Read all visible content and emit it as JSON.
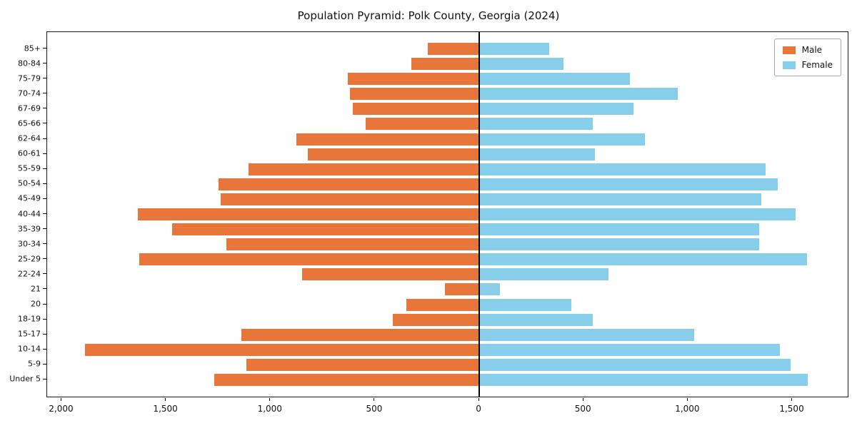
{
  "chart_data": {
    "type": "bar",
    "subtype": "population-pyramid",
    "title": "Population Pyramid: Polk County, Georgia (2024)",
    "categories": [
      "85+",
      "80-84",
      "75-79",
      "70-74",
      "67-69",
      "65-66",
      "62-64",
      "60-61",
      "55-59",
      "50-54",
      "45-49",
      "40-44",
      "35-39",
      "30-34",
      "25-29",
      "22-24",
      "21",
      "20",
      "18-19",
      "15-17",
      "10-14",
      "5-9",
      "Under 5"
    ],
    "series": [
      {
        "name": "Male",
        "side": "left",
        "color": "#e8763b",
        "values": [
          245,
          325,
          630,
          620,
          605,
          545,
          875,
          820,
          1105,
          1250,
          1240,
          1635,
          1470,
          1210,
          1630,
          850,
          165,
          350,
          415,
          1140,
          1890,
          1115,
          1270
        ]
      },
      {
        "name": "Female",
        "side": "right",
        "color": "#87ceeb",
        "values": [
          335,
          405,
          720,
          950,
          740,
          545,
          795,
          555,
          1370,
          1430,
          1350,
          1515,
          1340,
          1340,
          1570,
          620,
          100,
          440,
          545,
          1030,
          1440,
          1490,
          1575
        ]
      }
    ],
    "xlim": [
      -2070,
      1765
    ],
    "xticks": [
      {
        "value": -2000,
        "label": "2,000"
      },
      {
        "value": -1500,
        "label": "1,500"
      },
      {
        "value": -1000,
        "label": "1,000"
      },
      {
        "value": -500,
        "label": "500"
      },
      {
        "value": 0,
        "label": "0"
      },
      {
        "value": 500,
        "label": "500"
      },
      {
        "value": 1000,
        "label": "1,000"
      },
      {
        "value": 1500,
        "label": "1,500"
      }
    ],
    "legend_position": "upper right",
    "grid": false,
    "axis_color": "#000000",
    "background_color": "#ffffff"
  }
}
